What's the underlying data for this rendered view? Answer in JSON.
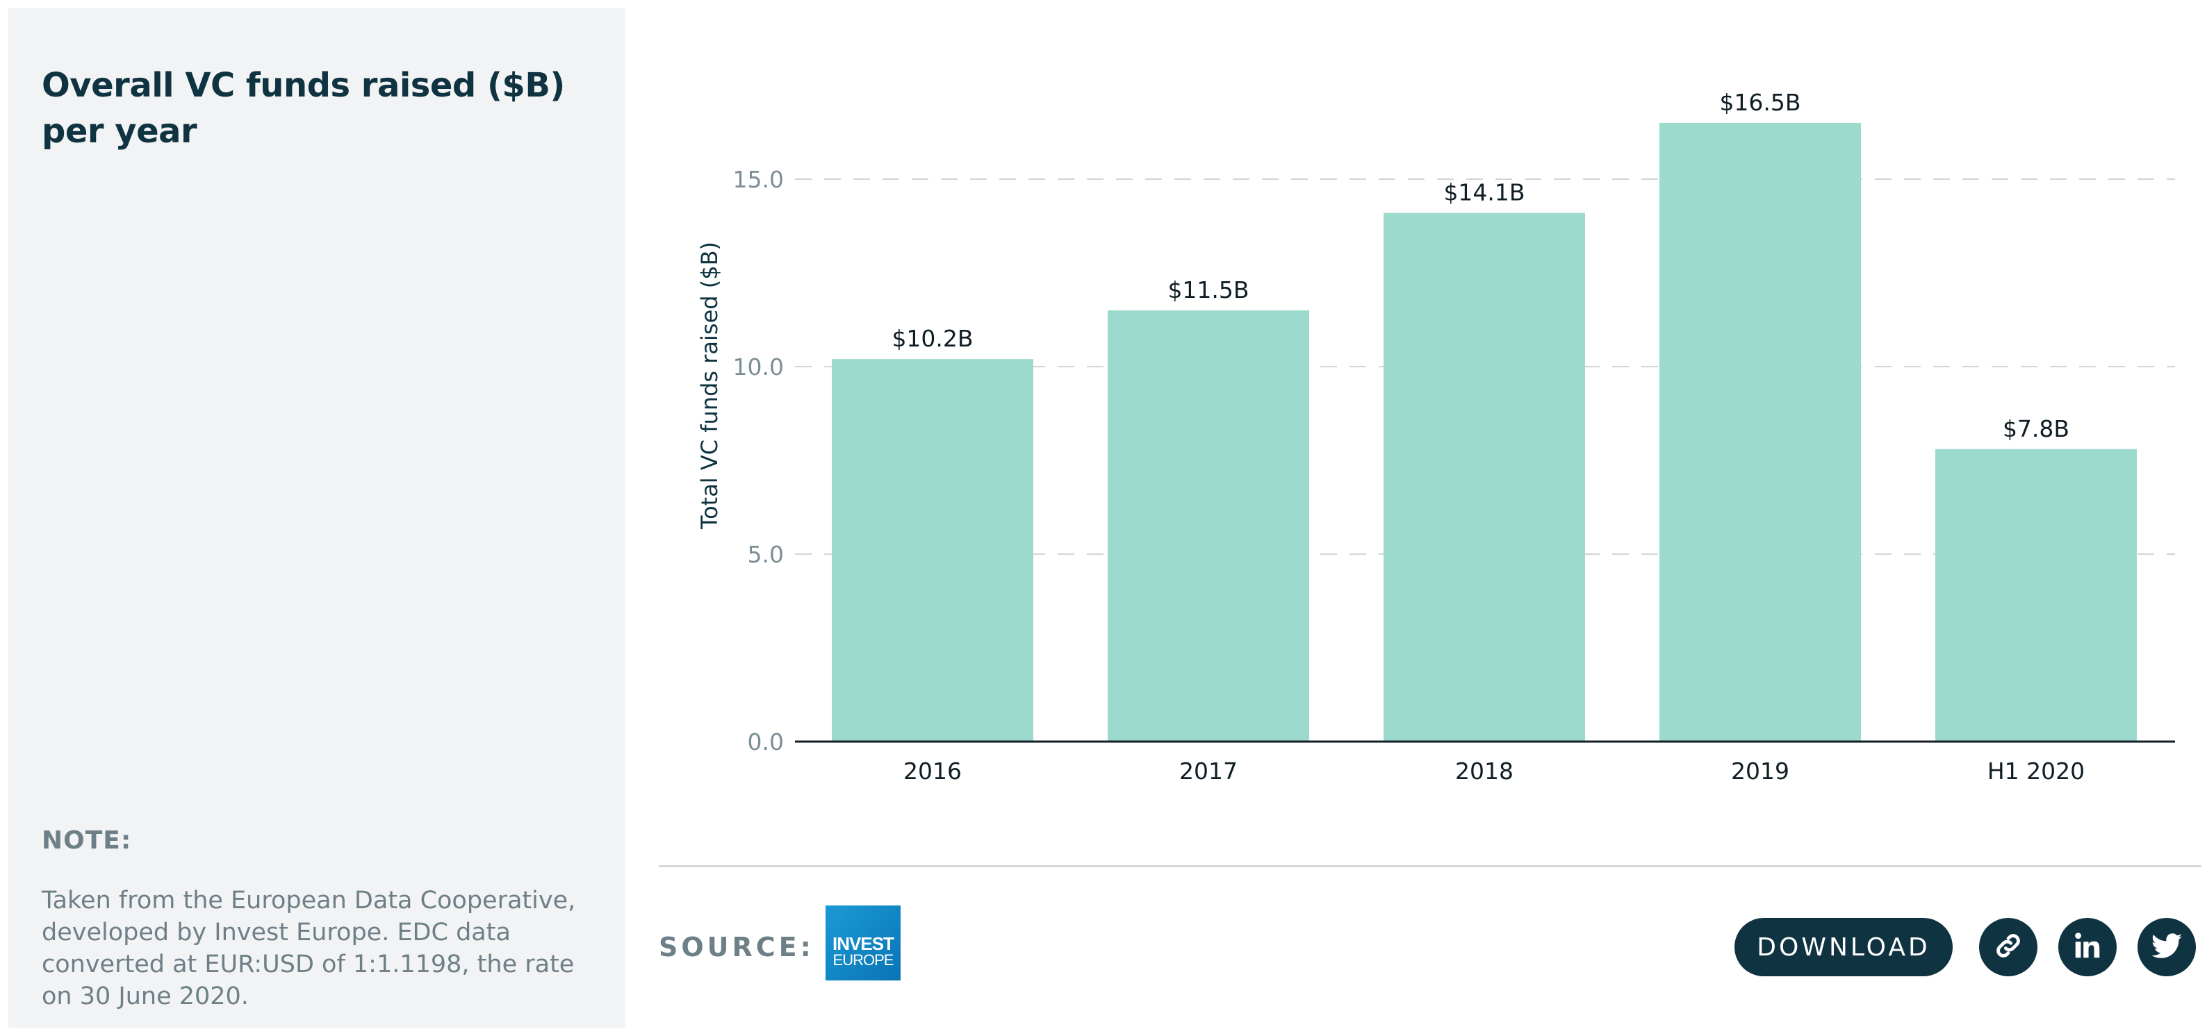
{
  "sidebar": {
    "title": "Overall VC funds raised ($B) per year",
    "note_heading": "NOTE:",
    "note_text": "Taken from the European Data Cooperative, developed by Invest Europe. EDC data converted at EUR:USD of 1:1.1198, the rate on 30 June 2020."
  },
  "footer": {
    "source_label": "SOURCE:",
    "logo_line1": "INVEST",
    "logo_line2": "EUROPE",
    "download_label": "DOWNLOAD",
    "icons": [
      "link-icon",
      "linkedin-icon",
      "twitter-icon"
    ]
  },
  "colors": {
    "bar": "#9cdace",
    "title": "#0f3341",
    "muted": "#6e8087",
    "button": "#0f3341"
  },
  "chart_data": {
    "type": "bar",
    "title": "Overall VC funds raised ($B) per year",
    "categories": [
      "2016",
      "2017",
      "2018",
      "2019",
      "H1 2020"
    ],
    "values": [
      10.2,
      11.5,
      14.1,
      16.5,
      7.8
    ],
    "data_labels": [
      "$10.2B",
      "$11.5B",
      "$14.1B",
      "$16.5B",
      "$7.8B"
    ],
    "xlabel": "",
    "ylabel": "Total VC funds raised ($B)",
    "ylim": [
      0,
      17
    ],
    "yticks": [
      0,
      5,
      10,
      15
    ],
    "ytick_labels": [
      "0.0",
      "5.0",
      "10.0",
      "15.0"
    ],
    "grid": "horizontal dashed",
    "legend": "none"
  }
}
